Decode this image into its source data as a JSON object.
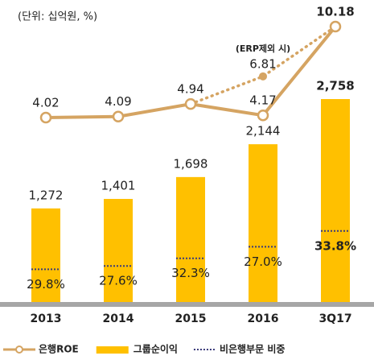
{
  "chart_data": {
    "type": "bar",
    "subtitle": "(단위: 십억원, %)",
    "categories": [
      "2013",
      "2014",
      "2015",
      "2016",
      "3Q17"
    ],
    "series": [
      {
        "name": "은행ROE",
        "type": "line",
        "axis": "y2",
        "color": "#d5a462",
        "values": [
          4.02,
          4.09,
          4.94,
          4.17,
          10.18
        ]
      },
      {
        "name": "그룹순이익",
        "type": "bar",
        "color": "#ffc000",
        "values": [
          1272,
          1401,
          1698,
          2144,
          2758
        ],
        "value_labels": [
          "1,272",
          "1,401",
          "1,698",
          "2,144",
          "2,758"
        ]
      },
      {
        "name": "비은행부문 비중",
        "type": "dotted",
        "color": "#3a3a7a",
        "values": [
          29.8,
          27.6,
          32.3,
          27.0,
          33.8
        ],
        "value_labels": [
          "29.8%",
          "27.6%",
          "32.3%",
          "27.0%",
          "33.8%"
        ]
      },
      {
        "name": "(ERP제외 시)",
        "type": "dotted-line",
        "axis": "y2",
        "color": "#d5a462",
        "values": [
          null,
          null,
          4.94,
          6.81,
          10.18
        ]
      }
    ]
  }
}
